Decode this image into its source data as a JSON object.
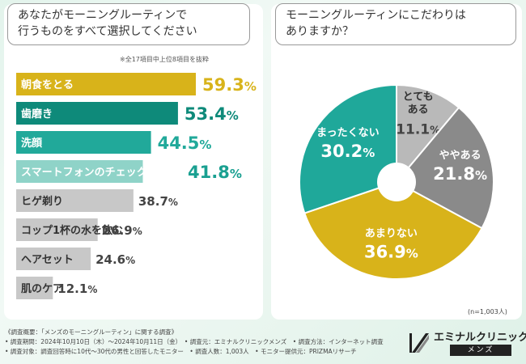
{
  "left": {
    "question_line1": "あなたがモーニングルーティンで",
    "question_line2": "行うものをすべて選択してください",
    "note": "※全17項目中上位8項目を抜粋"
  },
  "right": {
    "question_line1": "モーニングルーティンにこだわりは",
    "question_line2": "ありますか？",
    "sample": "(n=1,003人)"
  },
  "chart_data": [
    {
      "type": "bar",
      "orientation": "horizontal",
      "title": "あなたがモーニングルーティンで行うものをすべて選択してください",
      "categories": [
        "朝食をとる",
        "歯磨き",
        "洗顔",
        "スマートフォンのチェック",
        "ヒゲ剃り",
        "コップ1杯の水を飲む",
        "ヘアセット",
        "肌のケア"
      ],
      "values": [
        59.3,
        53.4,
        44.5,
        41.8,
        38.7,
        26.9,
        24.6,
        12.1
      ],
      "value_labels": [
        "59.3%",
        "53.4%",
        "44.5%",
        "41.8%",
        "38.7%",
        "26.9%",
        "24.6%",
        "12.1%"
      ],
      "unit": "%",
      "xlim": [
        0,
        70
      ],
      "colors": [
        "#d8b31a",
        "#0e8a7a",
        "#21a99a",
        "#8fd3c8",
        "#c8c8c8",
        "#c8c8c8",
        "#c8c8c8",
        "#c8c8c8"
      ]
    },
    {
      "type": "pie",
      "style": "donut",
      "title": "モーニングルーティンにこだわりはありますか？",
      "labels": [
        "とてもある",
        "ややある",
        "あまりない",
        "まったくない"
      ],
      "label_lines": [
        [
          "とても",
          "ある"
        ],
        [
          "ややある"
        ],
        [
          "あまりない"
        ],
        [
          "まったくない"
        ]
      ],
      "values": [
        11.1,
        21.8,
        36.9,
        30.2
      ],
      "value_labels": [
        "11.1%",
        "21.8%",
        "36.9%",
        "30.2%"
      ],
      "colors": [
        "#b9b9b9",
        "#8a8a8a",
        "#d8b31a",
        "#1fa89a"
      ]
    }
  ],
  "footer": {
    "line1": "《調査概要：「メンズのモーニングルーティン」に関する調査》",
    "line2": "• 調査期間：2024年10月10日（木）～2024年10月11日（金）　• 調査元：エミナルクリニックメンズ　• 調査方法：インターネット調査",
    "line3": "• 調査対象：調査回答時に10代～30代の男性と回答したモニター　• 調査人数：1,003人　• モニター提供元：PRIZMAリサーチ"
  },
  "brand": {
    "name": "エミナルクリニック",
    "sub": "メンズ"
  }
}
